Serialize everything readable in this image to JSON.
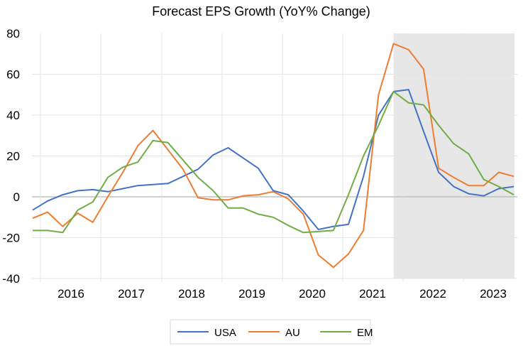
{
  "chart_data": {
    "type": "line",
    "title": "Forecast EPS Growth (YoY% Change)",
    "xlabel": "",
    "ylabel": "",
    "ylim": [
      -40,
      80
    ],
    "yticks": [
      -40,
      -20,
      0,
      20,
      40,
      60,
      80
    ],
    "ytick_labels": [
      "-40",
      "-20",
      "0",
      "20",
      "40",
      "60",
      "80"
    ],
    "x_tick_labels": [
      "2016",
      "2017",
      "2018",
      "2019",
      "2020",
      "2021",
      "2022",
      "2023"
    ],
    "x_frequency": "quarterly",
    "grid": true,
    "shaded_region": {
      "description": "forecast period",
      "start_index": 24,
      "end_index": 32,
      "color": "#E7E7E7"
    },
    "legend_position": "bottom",
    "series": [
      {
        "name": "USA",
        "color": "#4472C4",
        "values": [
          -6.5,
          -2,
          1,
          3,
          3.5,
          2.5,
          4,
          5.5,
          6,
          6.5,
          10,
          13.5,
          20.5,
          24,
          19,
          14,
          3,
          1,
          -7,
          -16,
          -14.5,
          -13.5,
          10,
          40,
          51.5,
          52.5,
          32,
          12,
          5,
          1.5,
          0.5,
          4,
          5
        ]
      },
      {
        "name": "AU",
        "color": "#ED7D31",
        "values": [
          -10.5,
          -7.5,
          -14.5,
          -8,
          -12.5,
          0,
          12,
          25,
          32.5,
          23,
          13.5,
          -0.5,
          -1.5,
          -1.5,
          0.5,
          1,
          2.5,
          -1,
          -8.5,
          -28.5,
          -34.5,
          -28,
          -16.5,
          50,
          75,
          72,
          62.5,
          14,
          9.5,
          5.5,
          5.5,
          12,
          10
        ]
      },
      {
        "name": "EM",
        "color": "#70AD47",
        "values": [
          -16.5,
          -16.5,
          -17.5,
          -6.5,
          -2.5,
          9.5,
          14.5,
          17,
          27.5,
          26.5,
          18,
          9.5,
          3,
          -5.5,
          -5.5,
          -8.5,
          -10,
          -14,
          -17.5,
          -17,
          -16.5,
          1,
          20,
          35,
          51.5,
          46,
          45,
          35,
          26,
          21,
          8.5,
          5,
          1
        ]
      }
    ]
  }
}
